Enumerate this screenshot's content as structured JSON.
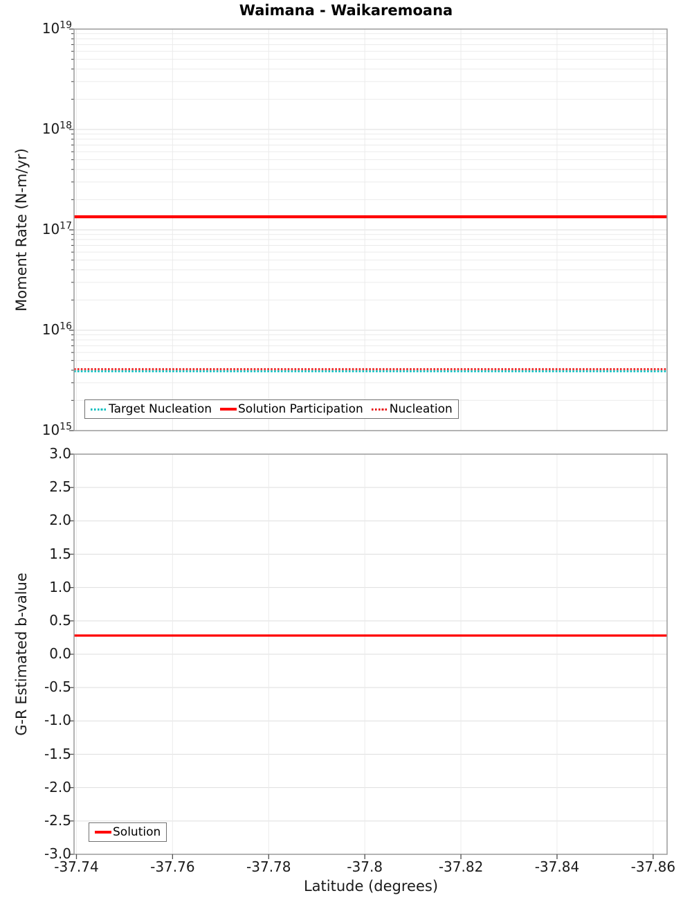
{
  "figure_title": "Waimana - Waikaremoana",
  "chart_data": [
    {
      "type": "line",
      "title": "Waimana - Waikaremoana",
      "ylabel": "Moment Rate (N-m/yr)",
      "yscale": "log",
      "ylim": [
        1000000000000000.0,
        1e+19
      ],
      "ytick_exponents": [
        19,
        18,
        17,
        16,
        15
      ],
      "xlim": [
        -37.7395,
        -37.8629
      ],
      "xtick_values": [
        -37.74,
        -37.76,
        -37.78,
        -37.8,
        -37.82,
        -37.84,
        -37.86
      ],
      "grid": true,
      "legend_position": "lower-left",
      "series": [
        {
          "name": "Target Nucleation",
          "style": "dotted",
          "color": "#00BEBE",
          "value": 3900000000000000.0
        },
        {
          "name": "Solution Participation",
          "style": "solid",
          "color": "#FF0000",
          "value": 1.35e+17
        },
        {
          "name": "Nucleation",
          "style": "dotted",
          "color": "#E81010",
          "value": 4100000000000000.0
        }
      ]
    },
    {
      "type": "line",
      "ylabel": "G-R Estimated b-value",
      "xlabel": "Latitude (degrees)",
      "yscale": "linear",
      "ylim": [
        -3.0,
        3.0
      ],
      "ytick_values": [
        3.0,
        2.5,
        2.0,
        1.5,
        1.0,
        0.5,
        0.0,
        -0.5,
        -1.0,
        -1.5,
        -2.0,
        -2.5,
        -3.0
      ],
      "ytick_labels": [
        "3.0",
        "2.5",
        "2.0",
        "1.5",
        "1.0",
        "0.5",
        "0.0",
        "-0.5",
        "-1.0",
        "-1.5",
        "-2.0",
        "-2.5",
        "-3.0"
      ],
      "xlim": [
        -37.7395,
        -37.8629
      ],
      "xtick_values": [
        -37.74,
        -37.76,
        -37.78,
        -37.8,
        -37.82,
        -37.84,
        -37.86
      ],
      "xtick_labels": [
        "-37.74",
        "-37.76",
        "-37.78",
        "-37.8",
        "-37.82",
        "-37.84",
        "-37.86"
      ],
      "grid": true,
      "legend_position": "lower-left",
      "series": [
        {
          "name": "Solution",
          "style": "solid",
          "color": "#FF0000",
          "value": 0.28
        }
      ]
    }
  ]
}
